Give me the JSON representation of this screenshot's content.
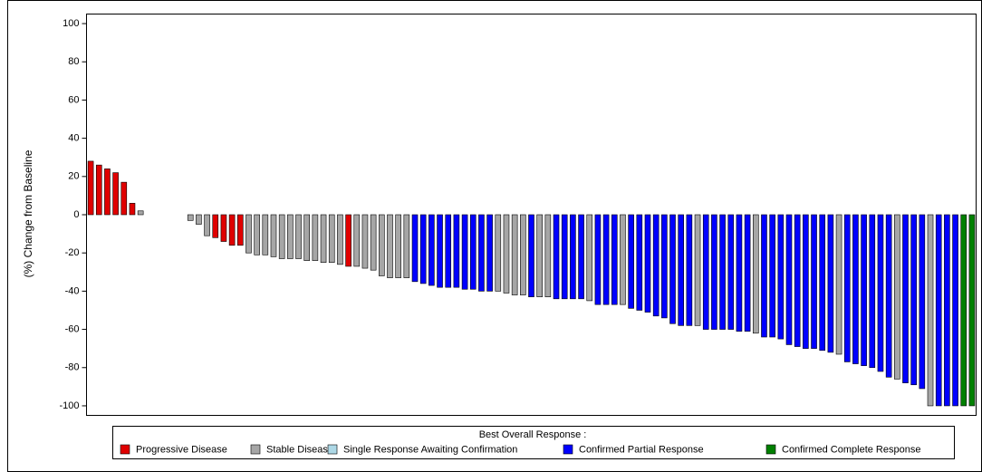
{
  "chart_data": {
    "type": "waterfall",
    "y_label": "(%) Change from Baseline",
    "legend_title": "Best Overall Response :",
    "ylim": [
      -105,
      105
    ],
    "yticks": [
      -100,
      -80,
      -60,
      -40,
      -20,
      0,
      20,
      40,
      60,
      80,
      100
    ],
    "series": [
      {
        "name": "Progressive Disease",
        "color": "#e00000",
        "values": [
          28,
          26,
          24,
          22,
          17,
          6,
          null,
          null,
          null,
          null,
          null,
          null,
          null,
          null,
          null,
          -12,
          -14,
          -16,
          -16,
          null,
          null,
          null,
          null,
          null,
          null,
          null,
          null,
          null,
          null,
          null,
          null,
          -27,
          null,
          null,
          null,
          null,
          null,
          null,
          null,
          null,
          null,
          null,
          null,
          null,
          null,
          null,
          null,
          null,
          null,
          null,
          null,
          null,
          null,
          null,
          null,
          null,
          null,
          null,
          null,
          null,
          null,
          null,
          null,
          null,
          null,
          null,
          null,
          null,
          null,
          null,
          null,
          null,
          null,
          null,
          null,
          null,
          null,
          null,
          null,
          null,
          null,
          null,
          null,
          null,
          null,
          null,
          null,
          null,
          null,
          null,
          null,
          null,
          null,
          null,
          null,
          null,
          null,
          null,
          null,
          null,
          null,
          null,
          null,
          null,
          null,
          null,
          null
        ]
      },
      {
        "name": "Stable Disease",
        "color": "#a6a6a6",
        "values": [
          null,
          null,
          null,
          null,
          null,
          null,
          2,
          0,
          0,
          0,
          0,
          0,
          -3,
          -5,
          -11,
          null,
          null,
          null,
          null,
          -20,
          -21,
          -21,
          -22,
          -23,
          -23,
          -23,
          -24,
          -24,
          -25,
          -25,
          -26,
          null,
          -27,
          -28,
          -29,
          -32,
          -33,
          -33,
          -33,
          null,
          null,
          null,
          null,
          null,
          null,
          null,
          null,
          null,
          null,
          -40,
          -41,
          -42,
          -42,
          null,
          -43,
          -43,
          null,
          null,
          null,
          null,
          -45,
          null,
          null,
          null,
          -47,
          null,
          null,
          null,
          null,
          null,
          null,
          null,
          null,
          -58,
          null,
          null,
          null,
          null,
          null,
          null,
          -62,
          null,
          null,
          null,
          null,
          null,
          null,
          null,
          null,
          null,
          -73,
          null,
          null,
          null,
          null,
          null,
          null,
          -86,
          null,
          null,
          null,
          -100,
          null,
          null,
          null,
          null,
          null
        ]
      },
      {
        "name": "Single Response Awaiting Confirmation",
        "color": "#add8e6",
        "values": [
          null,
          null,
          null,
          null,
          null,
          null,
          null,
          null,
          null,
          null,
          null,
          null,
          null,
          null,
          null,
          null,
          null,
          null,
          null,
          null,
          null,
          null,
          null,
          null,
          null,
          null,
          null,
          null,
          null,
          null,
          null,
          null,
          null,
          null,
          null,
          null,
          null,
          null,
          null,
          null,
          null,
          null,
          null,
          null,
          null,
          null,
          null,
          null,
          null,
          null,
          null,
          null,
          null,
          null,
          null,
          null,
          null,
          null,
          null,
          null,
          null,
          null,
          null,
          null,
          null,
          null,
          null,
          null,
          null,
          null,
          null,
          null,
          null,
          null,
          null,
          null,
          null,
          null,
          null,
          null,
          null,
          null,
          null,
          null,
          null,
          null,
          null,
          null,
          null,
          null,
          null,
          null,
          null,
          null,
          null,
          null,
          null,
          null,
          null,
          null,
          null,
          null,
          null,
          null,
          null,
          null,
          null
        ]
      },
      {
        "name": "Confirmed Partial Response",
        "color": "#0000ff",
        "values": [
          null,
          null,
          null,
          null,
          null,
          null,
          null,
          null,
          null,
          null,
          null,
          null,
          null,
          null,
          null,
          null,
          null,
          null,
          null,
          null,
          null,
          null,
          null,
          null,
          null,
          null,
          null,
          null,
          null,
          null,
          null,
          null,
          null,
          null,
          null,
          null,
          null,
          null,
          null,
          -35,
          -36,
          -37,
          -38,
          -38,
          -38,
          -39,
          -39,
          -40,
          -40,
          null,
          null,
          null,
          null,
          -43,
          null,
          null,
          -44,
          -44,
          -44,
          -44,
          null,
          -47,
          -47,
          -47,
          null,
          -49,
          -50,
          -51,
          -53,
          -54,
          -57,
          -58,
          -58,
          null,
          -60,
          -60,
          -60,
          -60,
          -61,
          -61,
          null,
          -64,
          -64,
          -65,
          -68,
          -69,
          -70,
          -70,
          -71,
          -72,
          null,
          -77,
          -78,
          -79,
          -80,
          -82,
          -85,
          null,
          -88,
          -89,
          -91,
          null,
          -100,
          -100,
          -100,
          null,
          null
        ]
      },
      {
        "name": "Confirmed Complete Response",
        "color": "#008000",
        "values": [
          null,
          null,
          null,
          null,
          null,
          null,
          null,
          null,
          null,
          null,
          null,
          null,
          null,
          null,
          null,
          null,
          null,
          null,
          null,
          null,
          null,
          null,
          null,
          null,
          null,
          null,
          null,
          null,
          null,
          null,
          null,
          null,
          null,
          null,
          null,
          null,
          null,
          null,
          null,
          null,
          null,
          null,
          null,
          null,
          null,
          null,
          null,
          null,
          null,
          null,
          null,
          null,
          null,
          null,
          null,
          null,
          null,
          null,
          null,
          null,
          null,
          null,
          null,
          null,
          null,
          null,
          null,
          null,
          null,
          null,
          null,
          null,
          null,
          null,
          null,
          null,
          null,
          null,
          null,
          null,
          null,
          null,
          null,
          null,
          null,
          null,
          null,
          null,
          null,
          null,
          null,
          null,
          null,
          null,
          null,
          null,
          null,
          null,
          null,
          null,
          null,
          null,
          null,
          null,
          null,
          -100,
          -100
        ]
      }
    ]
  }
}
